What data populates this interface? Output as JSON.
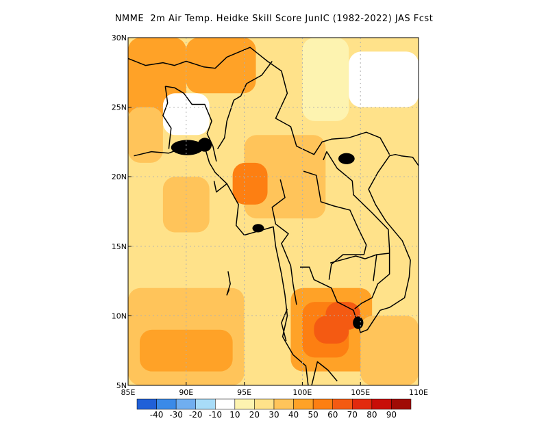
{
  "title": "NMME  2m Air Temp. Heidke Skill Score JunIC (1982-2022) JAS Fcst",
  "map": {
    "lon_range": [
      85,
      110
    ],
    "lat_range": [
      5,
      30
    ],
    "x_ticks": [
      {
        "value": 85,
        "label": "85E"
      },
      {
        "value": 90,
        "label": "90E"
      },
      {
        "value": 95,
        "label": "95E"
      },
      {
        "value": 100,
        "label": "100E"
      },
      {
        "value": 105,
        "label": "105E"
      },
      {
        "value": 110,
        "label": "110E"
      }
    ],
    "y_ticks": [
      {
        "value": 5,
        "label": "5N"
      },
      {
        "value": 10,
        "label": "10N"
      },
      {
        "value": 15,
        "label": "15N"
      },
      {
        "value": 20,
        "label": "20N"
      },
      {
        "value": 25,
        "label": "25N"
      },
      {
        "value": 30,
        "label": "30N"
      }
    ],
    "gridlines": "dotted",
    "field_regions": [
      {
        "lon": [
          85,
          110
        ],
        "lat": [
          5,
          30
        ],
        "category": "20-30",
        "note": "background"
      },
      {
        "lon": [
          85,
          90
        ],
        "lat": [
          24,
          30
        ],
        "category": "40-50"
      },
      {
        "lon": [
          90,
          96
        ],
        "lat": [
          26,
          30
        ],
        "category": "40-50"
      },
      {
        "lon": [
          85,
          88
        ],
        "lat": [
          21,
          25
        ],
        "category": "30-40"
      },
      {
        "lon": [
          95,
          102
        ],
        "lat": [
          17,
          23
        ],
        "category": "30-40"
      },
      {
        "lon": [
          94,
          97
        ],
        "lat": [
          18,
          21
        ],
        "category": "50-60"
      },
      {
        "lon": [
          85,
          95
        ],
        "lat": [
          5,
          12
        ],
        "category": "30-40"
      },
      {
        "lon": [
          86,
          94
        ],
        "lat": [
          6,
          9
        ],
        "category": "40-50"
      },
      {
        "lon": [
          99,
          106
        ],
        "lat": [
          6,
          12
        ],
        "category": "40-50"
      },
      {
        "lon": [
          100,
          104
        ],
        "lat": [
          7,
          11
        ],
        "category": "50-60"
      },
      {
        "lon": [
          102,
          105
        ],
        "lat": [
          9,
          11
        ],
        "category": "60-70"
      },
      {
        "lon": [
          101,
          104
        ],
        "lat": [
          8,
          10
        ],
        "category": "60-70"
      },
      {
        "lon": [
          105,
          110
        ],
        "lat": [
          5,
          10
        ],
        "category": "30-40"
      },
      {
        "lon": [
          100,
          104
        ],
        "lat": [
          24,
          30
        ],
        "category": "10-20"
      },
      {
        "lon": [
          104,
          110
        ],
        "lat": [
          25,
          29
        ],
        "category": "<10"
      },
      {
        "lon": [
          88,
          92
        ],
        "lat": [
          23,
          26
        ],
        "category": "<10"
      },
      {
        "lon": [
          103,
          108
        ],
        "lat": [
          19,
          22
        ],
        "category": "20-30"
      },
      {
        "lon": [
          88,
          92
        ],
        "lat": [
          16,
          20
        ],
        "category": "30-40"
      }
    ]
  },
  "colorbar": {
    "categories": [
      {
        "range": "<-40",
        "color": "#2060d8"
      },
      {
        "range": "-40 to -30",
        "color": "#3a8ae8"
      },
      {
        "range": "-30 to -20",
        "color": "#70aef0"
      },
      {
        "range": "-20 to -10",
        "color": "#a8dcf8"
      },
      {
        "range": "-10 to 10",
        "color": "#ffffff"
      },
      {
        "range": "10-20",
        "color": "#fdf3b0"
      },
      {
        "range": "20-30",
        "color": "#ffe28a"
      },
      {
        "range": "30-40",
        "color": "#ffc45a"
      },
      {
        "range": "40-50",
        "color": "#ffa227"
      },
      {
        "range": "50-60",
        "color": "#fd7f12"
      },
      {
        "range": "60-70",
        "color": "#f45a12"
      },
      {
        "range": "70-80",
        "color": "#e22a0e"
      },
      {
        "range": "80-90",
        "color": "#c80e08"
      },
      {
        "range": ">90",
        "color": "#a00c06"
      }
    ],
    "labels": [
      "-40",
      "-30",
      "-20",
      "-10",
      "10",
      "20",
      "30",
      "40",
      "50",
      "60",
      "70",
      "80",
      "90"
    ]
  },
  "colors": {
    "coastline": "#000000",
    "grid": "#b0b0b0"
  }
}
